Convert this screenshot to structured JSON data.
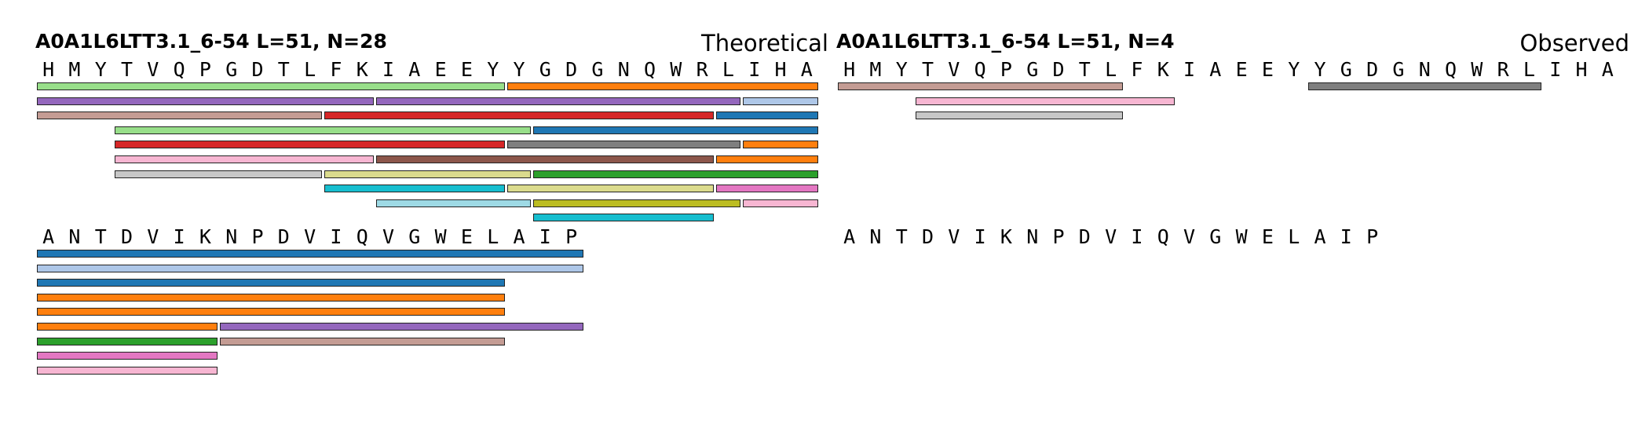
{
  "chart_data": [
    {
      "type": "peptide-coverage",
      "title": "A0A1L6LTT3.1_6-54  L=51, N=28",
      "label": "Theoretical",
      "rows": [
        {
          "sequence": "HMYTVQPGDTLFKIAEEYYGDGNQWRLIHA",
          "start": 1,
          "tracks": [
            [
              {
                "start": 1,
                "end": 18,
                "color": "#98df8a"
              },
              {
                "start": 19,
                "end": 30,
                "color": "#ff7f0e"
              }
            ],
            [
              {
                "start": 1,
                "end": 13,
                "color": "#9467bd"
              },
              {
                "start": 14,
                "end": 27,
                "color": "#9467bd"
              },
              {
                "start": 28,
                "end": 30,
                "color": "#aec7e8"
              }
            ],
            [
              {
                "start": 1,
                "end": 11,
                "color": "#c49c94"
              },
              {
                "start": 12,
                "end": 26,
                "color": "#d62728"
              },
              {
                "start": 27,
                "end": 30,
                "color": "#1f77b4"
              }
            ],
            [
              {
                "start": 4,
                "end": 19,
                "color": "#98df8a"
              },
              {
                "start": 20,
                "end": 30,
                "color": "#1f77b4"
              }
            ],
            [
              {
                "start": 4,
                "end": 18,
                "color": "#d62728"
              },
              {
                "start": 19,
                "end": 27,
                "color": "#7f7f7f"
              },
              {
                "start": 28,
                "end": 30,
                "color": "#ff7f0e"
              }
            ],
            [
              {
                "start": 4,
                "end": 13,
                "color": "#f7b6d2"
              },
              {
                "start": 14,
                "end": 26,
                "color": "#8c564b"
              },
              {
                "start": 27,
                "end": 30,
                "color": "#ff7f0e"
              }
            ],
            [
              {
                "start": 4,
                "end": 11,
                "color": "#c7c7c7"
              },
              {
                "start": 12,
                "end": 19,
                "color": "#dbdb8d"
              },
              {
                "start": 20,
                "end": 30,
                "color": "#2ca02c"
              }
            ],
            [
              {
                "start": 12,
                "end": 18,
                "color": "#17becf"
              },
              {
                "start": 19,
                "end": 26,
                "color": "#dbdb8d"
              },
              {
                "start": 27,
                "end": 30,
                "color": "#e377c2"
              }
            ],
            [
              {
                "start": 14,
                "end": 19,
                "color": "#9edae5"
              },
              {
                "start": 20,
                "end": 27,
                "color": "#bcbd22"
              },
              {
                "start": 28,
                "end": 30,
                "color": "#f7b6d2"
              }
            ],
            [
              {
                "start": 20,
                "end": 26,
                "color": "#17becf"
              }
            ]
          ]
        },
        {
          "sequence": "ANTDVIKNPDVIQVGWELAIP",
          "start": 31,
          "tracks": [
            [
              {
                "start": 31,
                "end": 51,
                "color": "#1f77b4"
              }
            ],
            [
              {
                "start": 31,
                "end": 51,
                "color": "#aec7e8"
              }
            ],
            [
              {
                "start": 31,
                "end": 48,
                "color": "#1f77b4"
              }
            ],
            [
              {
                "start": 31,
                "end": 48,
                "color": "#ff7f0e"
              }
            ],
            [
              {
                "start": 31,
                "end": 48,
                "color": "#ff7f0e"
              }
            ],
            [
              {
                "start": 31,
                "end": 37,
                "color": "#ff7f0e"
              },
              {
                "start": 38,
                "end": 51,
                "color": "#9467bd"
              }
            ],
            [
              {
                "start": 31,
                "end": 37,
                "color": "#2ca02c"
              },
              {
                "start": 38,
                "end": 48,
                "color": "#c49c94"
              }
            ],
            [
              {
                "start": 31,
                "end": 37,
                "color": "#e377c2"
              }
            ],
            [
              {
                "start": 31,
                "end": 37,
                "color": "#f7b6d2"
              }
            ]
          ]
        }
      ]
    },
    {
      "type": "peptide-coverage",
      "title": "A0A1L6LTT3.1_6-54  L=51, N=4",
      "label": "Observed",
      "rows": [
        {
          "sequence": "HMYTVQPGDTLFKIAEEYYGDGNQWRLIHA",
          "start": 1,
          "tracks": [
            [
              {
                "start": 1,
                "end": 11,
                "color": "#c49c94"
              },
              {
                "start": 19,
                "end": 27,
                "color": "#7f7f7f"
              }
            ],
            [
              {
                "start": 4,
                "end": 13,
                "color": "#f7b6d2"
              }
            ],
            [
              {
                "start": 4,
                "end": 11,
                "color": "#c7c7c7"
              }
            ]
          ]
        },
        {
          "sequence": "ANTDVIKNPDVIQVGWELAIP",
          "start": 31,
          "tracks": []
        }
      ]
    }
  ]
}
